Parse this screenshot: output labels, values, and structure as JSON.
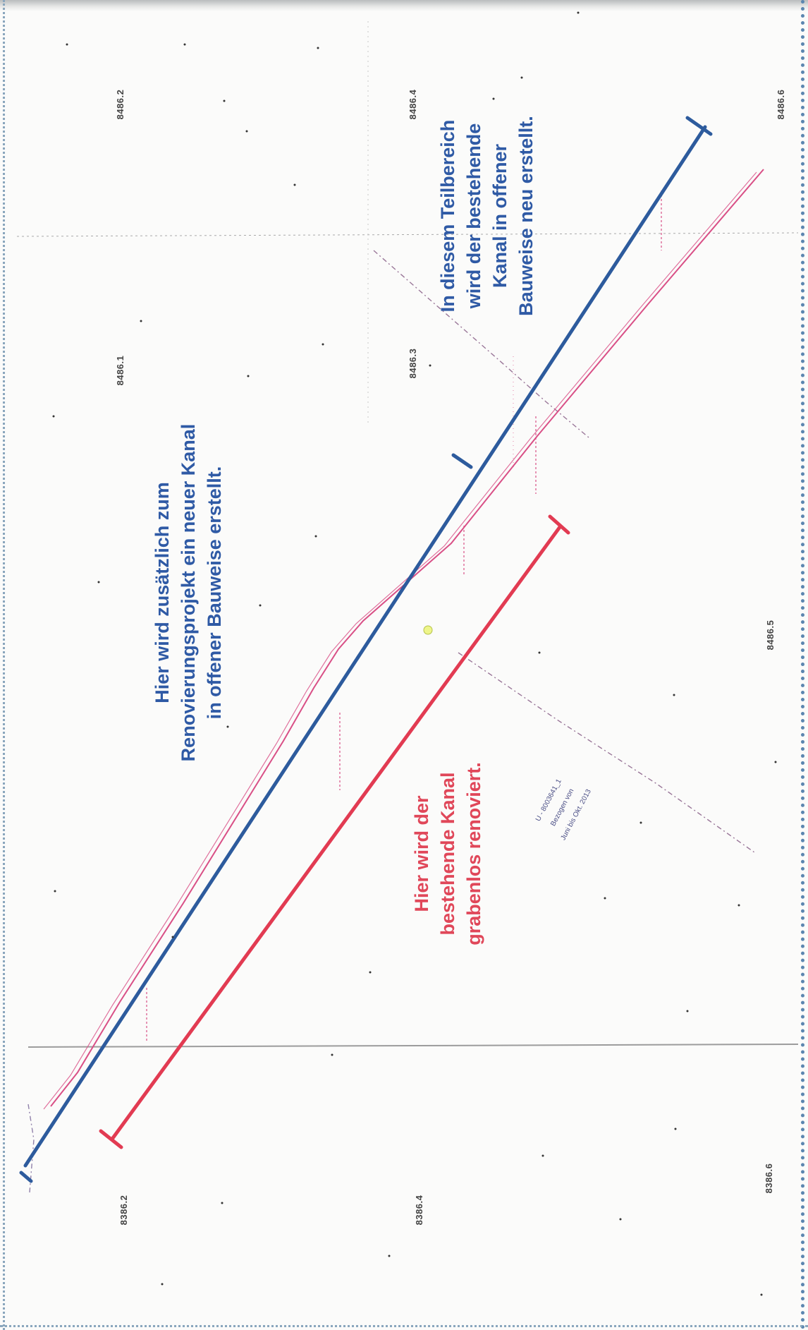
{
  "annotations": {
    "new_channel": "Hier wird zusätzlich zum\nRenovierungsprojekt ein neuer Kanal\nin offener Bauweise erstellt.",
    "partial_area": "In diesem Teilbereich\nwird der bestehende\nKanal in offener\nBauweise neu erstellt.",
    "trenchless": "Hier wird der\nbestehende Kanal\ngrabenlos renoviert."
  },
  "parcels": {
    "p1": "8486.2",
    "p2": "8486.4",
    "p3": "8486.6",
    "p4": "8486.1",
    "p5": "8486.3",
    "p6": "8486.5",
    "p7": "8386.2",
    "p8": "8386.4",
    "p9": "8386.6"
  },
  "stamp": {
    "line1": "U - 8003641_1",
    "line2": "Bezogen von",
    "line3": "Juni bis Okt. 2013"
  },
  "colors": {
    "blue_line": "#2d5b9d",
    "red_line": "#e23b52",
    "pipe": "#d94f86",
    "grid": "#9a9a9a"
  }
}
